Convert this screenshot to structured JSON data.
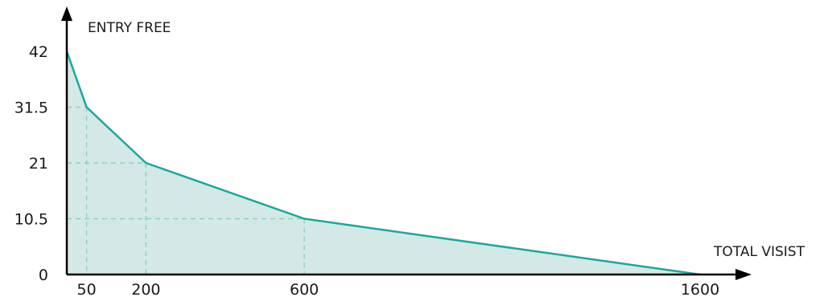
{
  "chart_data": {
    "type": "area",
    "title": "",
    "ylabel": "ENTRY FREE",
    "xlabel": "TOTAL VISIST",
    "x_ticks": [
      {
        "value": 50,
        "label": "50"
      },
      {
        "value": 200,
        "label": "200"
      },
      {
        "value": 600,
        "label": "600"
      },
      {
        "value": 1600,
        "label": "1600"
      }
    ],
    "y_ticks": [
      {
        "value": 0,
        "label": "0"
      },
      {
        "value": 10.5,
        "label": "10.5"
      },
      {
        "value": 21,
        "label": "21"
      },
      {
        "value": 31.5,
        "label": "31.5"
      },
      {
        "value": 42,
        "label": "42"
      }
    ],
    "points": [
      {
        "x": 0,
        "y": 42
      },
      {
        "x": 50,
        "y": 31.5
      },
      {
        "x": 200,
        "y": 21
      },
      {
        "x": 600,
        "y": 10.5
      },
      {
        "x": 1600,
        "y": 0
      }
    ],
    "xlim": [
      0,
      1600
    ],
    "ylim": [
      0,
      42
    ],
    "grid": true,
    "legend": "none",
    "colors": {
      "line": "#1aa89c",
      "fill": "#d4e8e6",
      "grid": "#8fcfc6",
      "axis": "#000000"
    }
  }
}
